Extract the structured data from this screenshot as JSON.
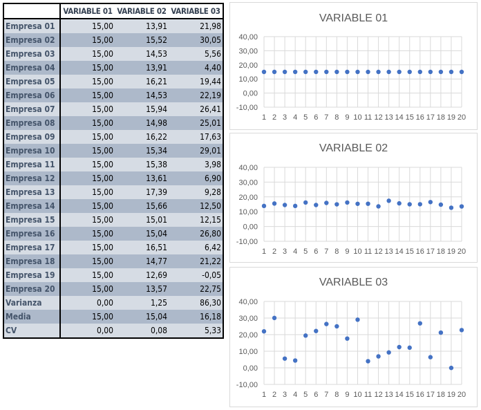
{
  "table": {
    "headers": [
      "",
      "VARIABLE 01",
      "VARIABLE 02",
      "VARIABLE 03"
    ],
    "rows": [
      [
        "Empresa 01",
        "15,00",
        "13,91",
        "21,98"
      ],
      [
        "Empresa 02",
        "15,00",
        "15,52",
        "30,05"
      ],
      [
        "Empresa 03",
        "15,00",
        "14,53",
        "5,56"
      ],
      [
        "Empresa 04",
        "15,00",
        "13,91",
        "4,40"
      ],
      [
        "Empresa 05",
        "15,00",
        "16,21",
        "19,44"
      ],
      [
        "Empresa 06",
        "15,00",
        "14,53",
        "22,19"
      ],
      [
        "Empresa 07",
        "15,00",
        "15,94",
        "26,41"
      ],
      [
        "Empresa 08",
        "15,00",
        "14,98",
        "25,01"
      ],
      [
        "Empresa 09",
        "15,00",
        "16,22",
        "17,63"
      ],
      [
        "Empresa 10",
        "15,00",
        "15,34",
        "29,01"
      ],
      [
        "Empresa 11",
        "15,00",
        "15,38",
        "3,98"
      ],
      [
        "Empresa 12",
        "15,00",
        "13,61",
        "6,90"
      ],
      [
        "Empresa 13",
        "15,00",
        "17,39",
        "9,28"
      ],
      [
        "Empresa 14",
        "15,00",
        "15,66",
        "12,50"
      ],
      [
        "Empresa 15",
        "15,00",
        "15,01",
        "12,15"
      ],
      [
        "Empresa 16",
        "15,00",
        "15,04",
        "26,80"
      ],
      [
        "Empresa 17",
        "15,00",
        "16,51",
        "6,42"
      ],
      [
        "Empresa 18",
        "15,00",
        "14,77",
        "21,22"
      ],
      [
        "Empresa 19",
        "15,00",
        "12,69",
        "-0,05"
      ],
      [
        "Empresa 20",
        "15,00",
        "13,57",
        "22,75"
      ],
      [
        "Varianza",
        "0,00",
        "1,25",
        "86,30"
      ],
      [
        "Media",
        "15,00",
        "15,04",
        "16,18"
      ],
      [
        "CV",
        "0,00",
        "0,08",
        "5,33"
      ]
    ],
    "row_colors": [
      "#d6dce4",
      "#adb9ca"
    ]
  },
  "chart_data": [
    {
      "type": "scatter",
      "title": "VARIABLE 01",
      "x": [
        1,
        2,
        3,
        4,
        5,
        6,
        7,
        8,
        9,
        10,
        11,
        12,
        13,
        14,
        15,
        16,
        17,
        18,
        19,
        20
      ],
      "y": [
        15,
        15,
        15,
        15,
        15,
        15,
        15,
        15,
        15,
        15,
        15,
        15,
        15,
        15,
        15,
        15,
        15,
        15,
        15,
        15
      ],
      "ylim": [
        -10,
        40
      ],
      "yticks": [
        "40,00",
        "30,00",
        "20,00",
        "10,00",
        "0,00",
        "-10,00"
      ],
      "grid": true,
      "color": "#4472c4"
    },
    {
      "type": "scatter",
      "title": "VARIABLE 02",
      "x": [
        1,
        2,
        3,
        4,
        5,
        6,
        7,
        8,
        9,
        10,
        11,
        12,
        13,
        14,
        15,
        16,
        17,
        18,
        19,
        20
      ],
      "y": [
        13.91,
        15.52,
        14.53,
        13.91,
        16.21,
        14.53,
        15.94,
        14.98,
        16.22,
        15.34,
        15.38,
        13.61,
        17.39,
        15.66,
        15.01,
        15.04,
        16.51,
        14.77,
        12.69,
        13.57
      ],
      "ylim": [
        -10,
        40
      ],
      "yticks": [
        "40,00",
        "30,00",
        "20,00",
        "10,00",
        "0,00",
        "-10,00"
      ],
      "grid": true,
      "color": "#4472c4"
    },
    {
      "type": "scatter",
      "title": "VARIABLE 03",
      "x": [
        1,
        2,
        3,
        4,
        5,
        6,
        7,
        8,
        9,
        10,
        11,
        12,
        13,
        14,
        15,
        16,
        17,
        18,
        19,
        20
      ],
      "y": [
        21.98,
        30.05,
        5.56,
        4.4,
        19.44,
        22.19,
        26.41,
        25.01,
        17.63,
        29.01,
        3.98,
        6.9,
        9.28,
        12.5,
        12.15,
        26.8,
        6.42,
        21.22,
        -0.05,
        22.75
      ],
      "ylim": [
        -10,
        40
      ],
      "yticks": [
        "40,00",
        "30,00",
        "20,00",
        "10,00",
        "0,00",
        "-10,00"
      ],
      "grid": true,
      "color": "#4472c4"
    }
  ]
}
